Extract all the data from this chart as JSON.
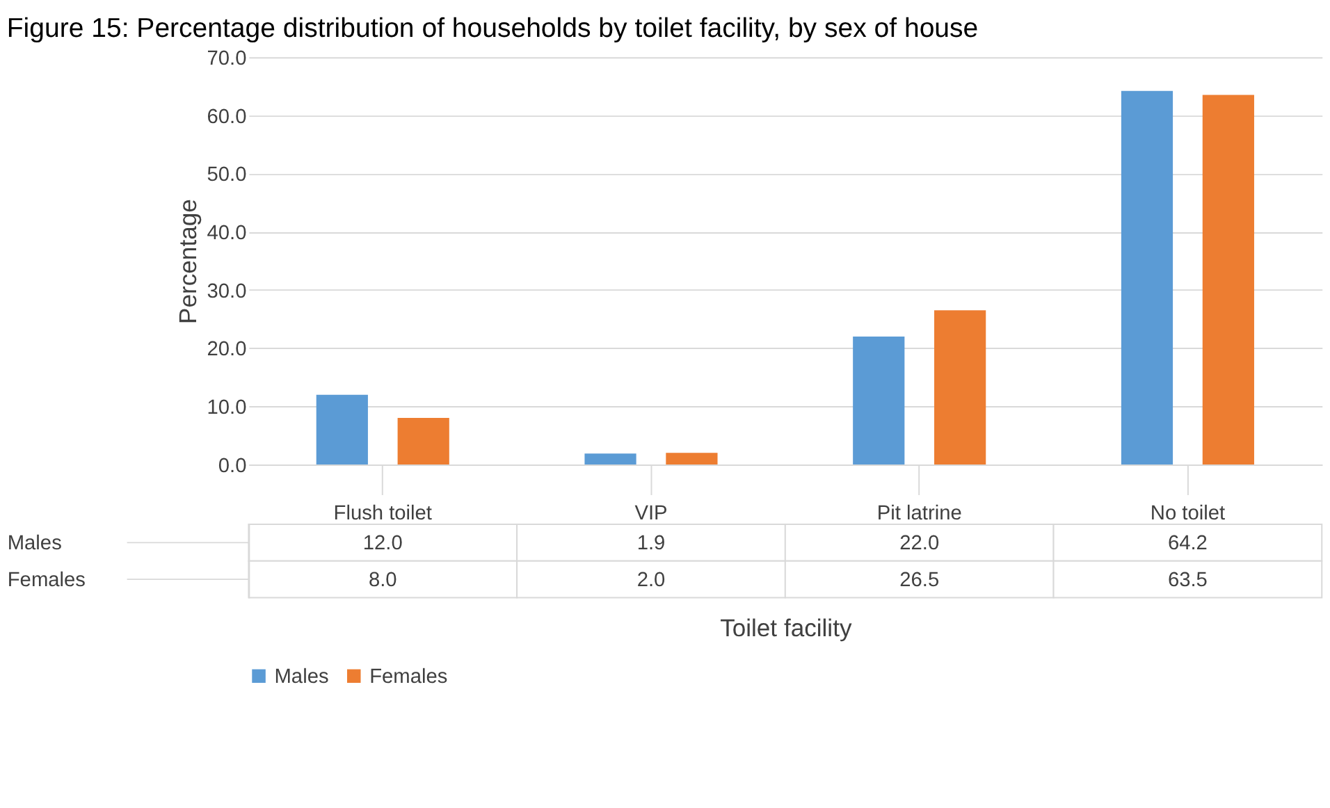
{
  "chart_data": {
    "type": "bar",
    "title": "Figure 15: Percentage distribution of households by toilet facility, by sex of house",
    "categories": [
      "Flush toilet",
      "VIP",
      "Pit latrine",
      "No toilet"
    ],
    "series": [
      {
        "name": "Males",
        "color": "#5b9bd5",
        "values": [
          12.0,
          1.9,
          22.0,
          64.2
        ],
        "value_labels": [
          "12.0",
          "1.9",
          "22.0",
          "64.2"
        ]
      },
      {
        "name": "Females",
        "color": "#ed7d31",
        "values": [
          8.0,
          2.0,
          26.5,
          63.5
        ],
        "value_labels": [
          "8.0",
          "2.0",
          "26.5",
          "63.5"
        ]
      }
    ],
    "xlabel": "Toilet facility",
    "ylabel": "Percentage",
    "ylim": [
      0,
      70
    ],
    "yticks": [
      {
        "value": 0,
        "label": "0.0"
      },
      {
        "value": 10,
        "label": "10.0"
      },
      {
        "value": 20,
        "label": "20.0"
      },
      {
        "value": 30,
        "label": "30.0"
      },
      {
        "value": 40,
        "label": "40.0"
      },
      {
        "value": 50,
        "label": "50.0"
      },
      {
        "value": 60,
        "label": "60.0"
      },
      {
        "value": 70,
        "label": "70.0"
      }
    ],
    "grid": "y",
    "legend": "bottom"
  }
}
